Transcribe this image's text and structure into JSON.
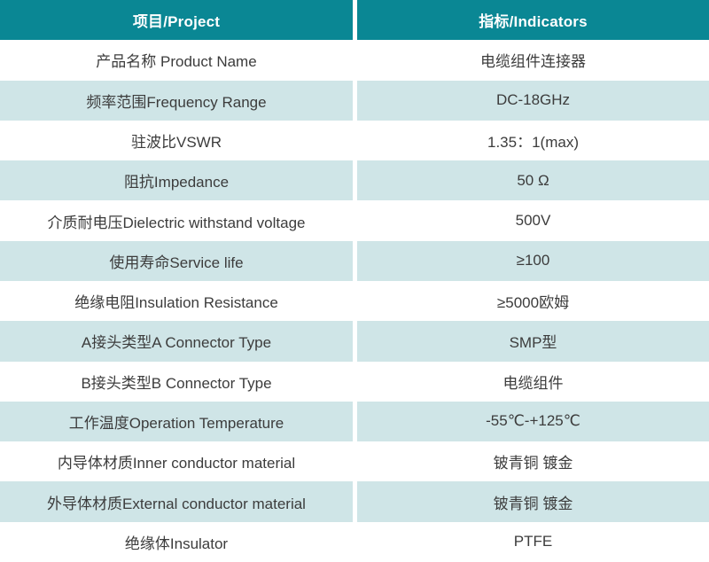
{
  "header": {
    "project": "项目/Project",
    "indicators": "指标/Indicators"
  },
  "rows": [
    {
      "project": "产品名称 Product Name",
      "indicator": "电缆组件连接器"
    },
    {
      "project": "频率范围Frequency Range",
      "indicator": "DC-18GHz"
    },
    {
      "project": "驻波比VSWR",
      "indicator": "1.35：1(max)"
    },
    {
      "project": "阻抗Impedance",
      "indicator": "50 Ω"
    },
    {
      "project": "介质耐电压Dielectric withstand voltage",
      "indicator": "500V"
    },
    {
      "project": "使用寿命Service life",
      "indicator": "≥100"
    },
    {
      "project": "绝缘电阻Insulation Resistance",
      "indicator": "≥5000欧姆"
    },
    {
      "project": "A接头类型A Connector Type",
      "indicator": "SMP型"
    },
    {
      "project": "B接头类型B Connector Type",
      "indicator": "电缆组件"
    },
    {
      "project": "工作温度Operation Temperature",
      "indicator": "-55℃-+125℃"
    },
    {
      "project": "内导体材质Inner conductor material",
      "indicator": "铍青铜 镀金"
    },
    {
      "project": "外导体材质External conductor material",
      "indicator": "铍青铜 镀金"
    },
    {
      "project": "绝缘体Insulator",
      "indicator": "PTFE"
    }
  ],
  "colors": {
    "header_bg": "#0a8794",
    "header_text": "#ffffff",
    "alt_row_bg": "#cfe5e7",
    "row_bg": "#ffffff",
    "body_text": "#3c3c3c"
  }
}
